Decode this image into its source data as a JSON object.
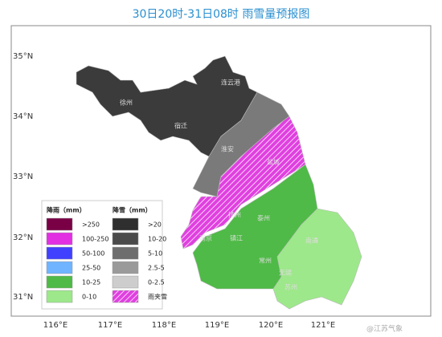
{
  "title": "30日20时-31日08时 雨雪量预报图",
  "latitude_labels": [
    "35°N",
    "34°N",
    "33°N",
    "32°N",
    "31°N"
  ],
  "longitude_labels": [
    "116°E",
    "117°E",
    "118°E",
    "119°E",
    "120°E",
    "121°E"
  ],
  "legend": {
    "rain": {
      "title": "降雨（mm）",
      "items": [
        {
          "label": ">250",
          "color": "#7a0046"
        },
        {
          "label": "100-250",
          "color": "#e22fe2"
        },
        {
          "label": "50-100",
          "color": "#4040ff"
        },
        {
          "label": "25-50",
          "color": "#6fb4ff"
        },
        {
          "label": "10-25",
          "color": "#4fba47"
        },
        {
          "label": "0-10",
          "color": "#9de88a"
        }
      ]
    },
    "snow": {
      "title": "降雪（mm）",
      "items": [
        {
          "label": ">20",
          "color": "#2f2f2f"
        },
        {
          "label": "10-20",
          "color": "#4a4a4a"
        },
        {
          "label": "5-10",
          "color": "#6e6e6e"
        },
        {
          "label": "2.5-5",
          "color": "#9a9a9a"
        },
        {
          "label": "0-2.5",
          "color": "#cdcdcd"
        },
        {
          "label": "雨夹雪",
          "color": "#e040e0",
          "hatched": true
        }
      ]
    }
  },
  "cities": [
    "连云港",
    "徐州",
    "宿迁",
    "淮安",
    "盐城",
    "扬州",
    "泰州",
    "南京",
    "镇江",
    "常州",
    "无锡",
    "南通",
    "苏州"
  ],
  "watermark": "@江苏气象"
}
